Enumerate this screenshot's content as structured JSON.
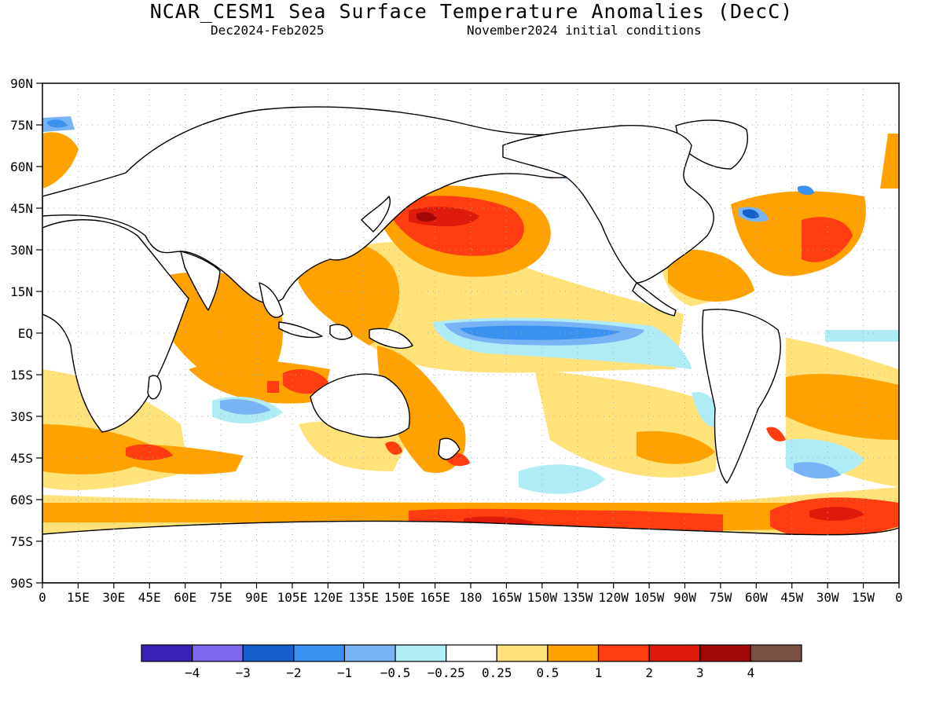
{
  "header": {
    "title": "NCAR_CESM1 Sea Surface Temperature Anomalies (DecC)",
    "period": "Dec2024-Feb2025",
    "init": "November2024 initial conditions"
  },
  "chart_data": {
    "type": "heatmap",
    "projection": "cylindrical equidistant",
    "lon_range": [
      0,
      360
    ],
    "lat_range": [
      -90,
      90
    ],
    "grid": true,
    "y_ticks": [
      "90N",
      "75N",
      "60N",
      "45N",
      "30N",
      "15N",
      "EQ",
      "15S",
      "30S",
      "45S",
      "60S",
      "75S",
      "90S"
    ],
    "x_ticks": [
      "0",
      "15E",
      "30E",
      "45E",
      "60E",
      "75E",
      "90E",
      "105E",
      "120E",
      "135E",
      "150E",
      "165E",
      "180",
      "165W",
      "150W",
      "135W",
      "120W",
      "105W",
      "90W",
      "75W",
      "60W",
      "45W",
      "30W",
      "15W",
      "0"
    ],
    "legend": {
      "placement": "bottom",
      "labels": [
        "-4",
        "-3",
        "-2",
        "-1",
        "-0.5",
        "-0.25",
        "0.25",
        "0.5",
        "1",
        "2",
        "3",
        "4"
      ],
      "colors": [
        "#3a22b8",
        "#7b68ee",
        "#1560cc",
        "#3a92f0",
        "#78b4f5",
        "#b0ecf6",
        "#ffffff",
        "#ffe27a",
        "#ffa200",
        "#ff3d10",
        "#de1a0a",
        "#a20808",
        "#7a5043"
      ]
    }
  }
}
